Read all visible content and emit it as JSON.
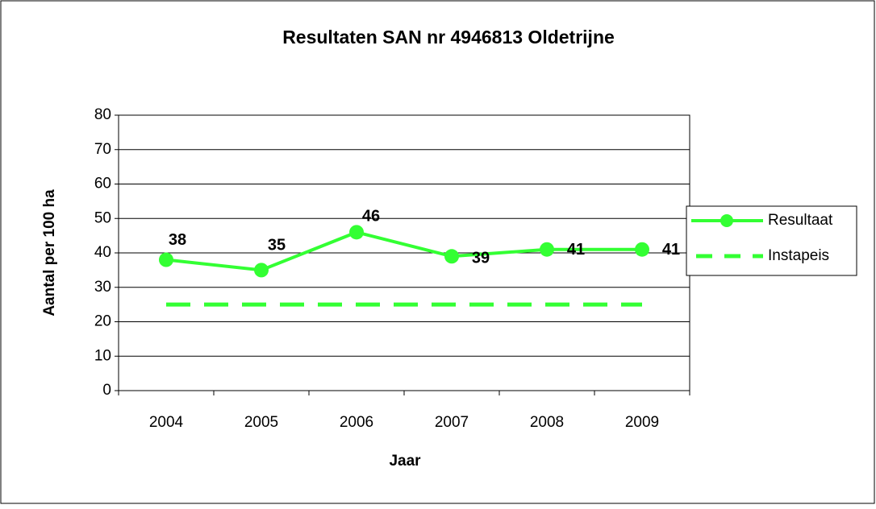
{
  "chart_data": {
    "type": "line",
    "title": "Resultaten SAN nr 4946813 Oldetrijne",
    "x_label": "Jaar",
    "y_label": "Aantal per 100 ha",
    "categories": [
      "2004",
      "2005",
      "2006",
      "2007",
      "2008",
      "2009"
    ],
    "series": [
      {
        "name": "Resultaat",
        "color": "#33ff33",
        "values": [
          38,
          35,
          46,
          39,
          41,
          41
        ],
        "marker": true,
        "dashed": false,
        "data_labels": true
      },
      {
        "name": "Instapeis",
        "color": "#33ff33",
        "values": [
          25,
          25,
          25,
          25,
          25,
          25
        ],
        "marker": false,
        "dashed": true,
        "data_labels": false
      }
    ],
    "ylim": [
      0,
      80
    ],
    "yticks": [
      0,
      10,
      20,
      30,
      40,
      50,
      60,
      70,
      80
    ],
    "grid": true,
    "legend": "right"
  }
}
